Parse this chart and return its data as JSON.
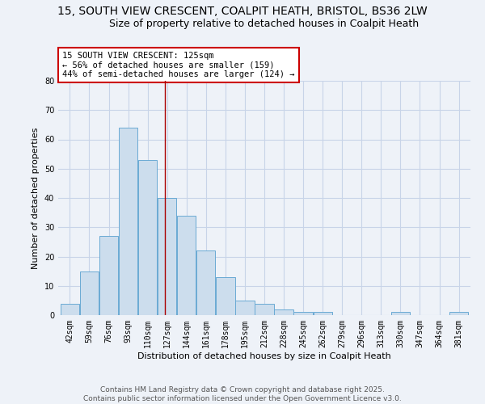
{
  "title1": "15, SOUTH VIEW CRESCENT, COALPIT HEATH, BRISTOL, BS36 2LW",
  "title2": "Size of property relative to detached houses in Coalpit Heath",
  "xlabel": "Distribution of detached houses by size in Coalpit Heath",
  "ylabel": "Number of detached properties",
  "bin_labels": [
    "42sqm",
    "59sqm",
    "76sqm",
    "93sqm",
    "110sqm",
    "127sqm",
    "144sqm",
    "161sqm",
    "178sqm",
    "195sqm",
    "212sqm",
    "228sqm",
    "245sqm",
    "262sqm",
    "279sqm",
    "296sqm",
    "313sqm",
    "330sqm",
    "347sqm",
    "364sqm",
    "381sqm"
  ],
  "bar_values": [
    4,
    15,
    27,
    64,
    53,
    40,
    34,
    22,
    13,
    5,
    4,
    2,
    1,
    1,
    0,
    0,
    0,
    1,
    0,
    0,
    1
  ],
  "bar_color": "#ccdded",
  "bar_edge_color": "#6aaad4",
  "grid_color": "#c8d4e8",
  "background_color": "#eef2f8",
  "ref_line_color": "#aa0000",
  "annotation_text": "15 SOUTH VIEW CRESCENT: 125sqm\n← 56% of detached houses are smaller (159)\n44% of semi-detached houses are larger (124) →",
  "annotation_box_color": "#ffffff",
  "annotation_box_edge": "#cc0000",
  "ylim": [
    0,
    80
  ],
  "yticks": [
    0,
    10,
    20,
    30,
    40,
    50,
    60,
    70,
    80
  ],
  "footer": "Contains HM Land Registry data © Crown copyright and database right 2025.\nContains public sector information licensed under the Open Government Licence v3.0.",
  "title_fontsize": 10,
  "subtitle_fontsize": 9,
  "axis_label_fontsize": 8,
  "tick_fontsize": 7,
  "annotation_fontsize": 7.5,
  "footer_fontsize": 6.5
}
